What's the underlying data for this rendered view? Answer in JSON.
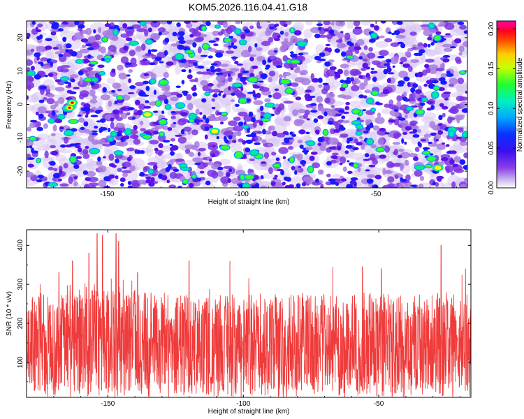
{
  "title": "KOM5.2026.116.04.41.G18",
  "colors": {
    "snr_line": "#ef3b3b",
    "blob_scale": [
      "#ffffff",
      "#d9c8f2",
      "#a77be0",
      "#7a33e0",
      "#5a14e6",
      "#1a1aff",
      "#00a0ff",
      "#00e8a0",
      "#33ff33",
      "#ffff00",
      "#ff8000",
      "#ff0000",
      "#ff00a0"
    ]
  },
  "chart_data": [
    {
      "type": "heatmap",
      "xlabel": "Height of straight line (km)",
      "ylabel": "Frequency (Hz)",
      "xlim": [
        -180,
        -16
      ],
      "ylim": [
        -25,
        25
      ],
      "x_ticks": [
        -150,
        -100,
        -50
      ],
      "x_tick_labels": [
        "-150",
        "-100",
        "-50"
      ],
      "y_ticks": [
        -20,
        -10,
        0,
        10,
        20
      ],
      "y_tick_labels": [
        "-20",
        "-10",
        "0",
        "10",
        "20"
      ],
      "colorbar": {
        "label": "Normalized spectral amplitude",
        "range": [
          0,
          0.21
        ],
        "ticks": [
          0,
          0.05,
          0.1,
          0.15,
          0.2
        ],
        "tick_labels": [
          "0.00",
          "0.05",
          "0.10",
          "0.15",
          "0.20"
        ]
      }
    },
    {
      "type": "line",
      "xlabel": "Height of straight line (km)",
      "ylabel": "SNR (10 * v/v)",
      "xlim": [
        -180,
        -16
      ],
      "ylim": [
        10,
        440
      ],
      "x_ticks": [
        -150,
        -100,
        -50
      ],
      "x_tick_labels": [
        "-150",
        "-100",
        "-50"
      ],
      "y_ticks": [
        100,
        200,
        300,
        400
      ],
      "y_tick_labels": [
        "100",
        "200",
        "300",
        "400"
      ],
      "series": [
        {
          "x_range": [
            -180,
            -16
          ],
          "typical_range": [
            40,
            280
          ],
          "peaks": [
            {
              "x": -175,
              "y": 300
            },
            {
              "x": -168,
              "y": 330
            },
            {
              "x": -163,
              "y": 360
            },
            {
              "x": -157,
              "y": 380
            },
            {
              "x": -154,
              "y": 430
            },
            {
              "x": -152,
              "y": 425
            },
            {
              "x": -147,
              "y": 430
            },
            {
              "x": -146,
              "y": 410
            },
            {
              "x": -139,
              "y": 330
            },
            {
              "x": -120,
              "y": 360
            },
            {
              "x": -105,
              "y": 360
            },
            {
              "x": -84,
              "y": 350
            },
            {
              "x": -67,
              "y": 345
            },
            {
              "x": -56,
              "y": 345
            },
            {
              "x": -49,
              "y": 340
            },
            {
              "x": -27,
              "y": 400
            },
            {
              "x": -18,
              "y": 340
            }
          ]
        }
      ]
    }
  ]
}
